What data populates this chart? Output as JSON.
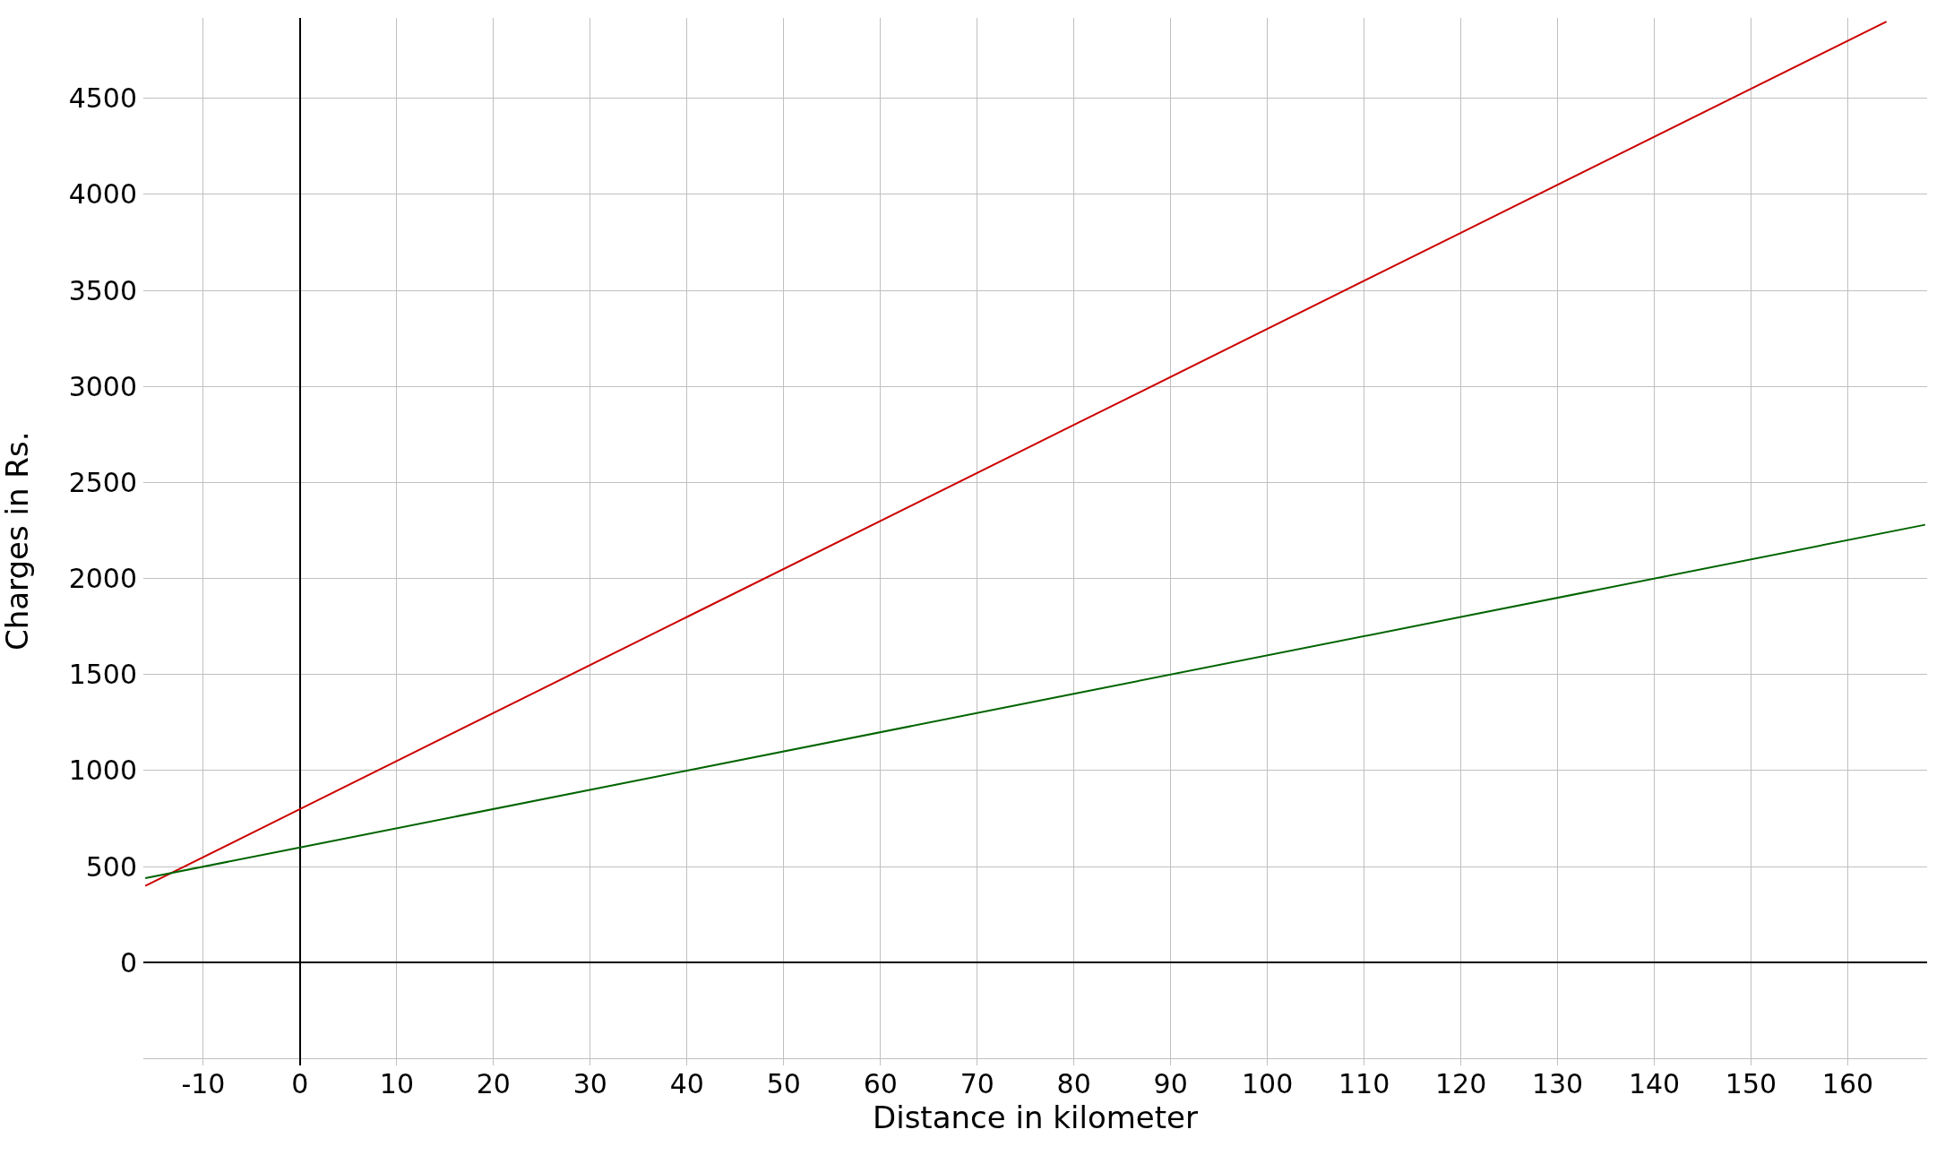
{
  "chart_data": {
    "type": "line",
    "xlabel": "Distance in kilometer",
    "ylabel": "Charges in Rs.",
    "series": [
      {
        "color": "#cc0000",
        "x": [
          -16,
          0,
          40,
          80,
          120,
          164
        ],
        "values": [
          400,
          800,
          1800,
          2800,
          3800,
          4900
        ]
      },
      {
        "color": "#006400",
        "x": [
          -16,
          0,
          40,
          80,
          120,
          168
        ],
        "values": [
          440,
          600,
          1000,
          1400,
          1800,
          2280
        ]
      }
    ],
    "xlim": [
      -16.2,
      168.2
    ],
    "ylim": [
      -535,
      4919
    ],
    "xticks": [
      -10,
      0,
      10,
      20,
      30,
      40,
      50,
      60,
      70,
      80,
      90,
      100,
      110,
      120,
      130,
      140,
      150,
      160
    ],
    "yticks": [
      {
        "value": -500,
        "label": null
      },
      0,
      500,
      1000,
      1500,
      2000,
      2500,
      3000,
      3500,
      4000,
      4500
    ],
    "grid": true,
    "marker": "none",
    "line_style": "solid"
  }
}
